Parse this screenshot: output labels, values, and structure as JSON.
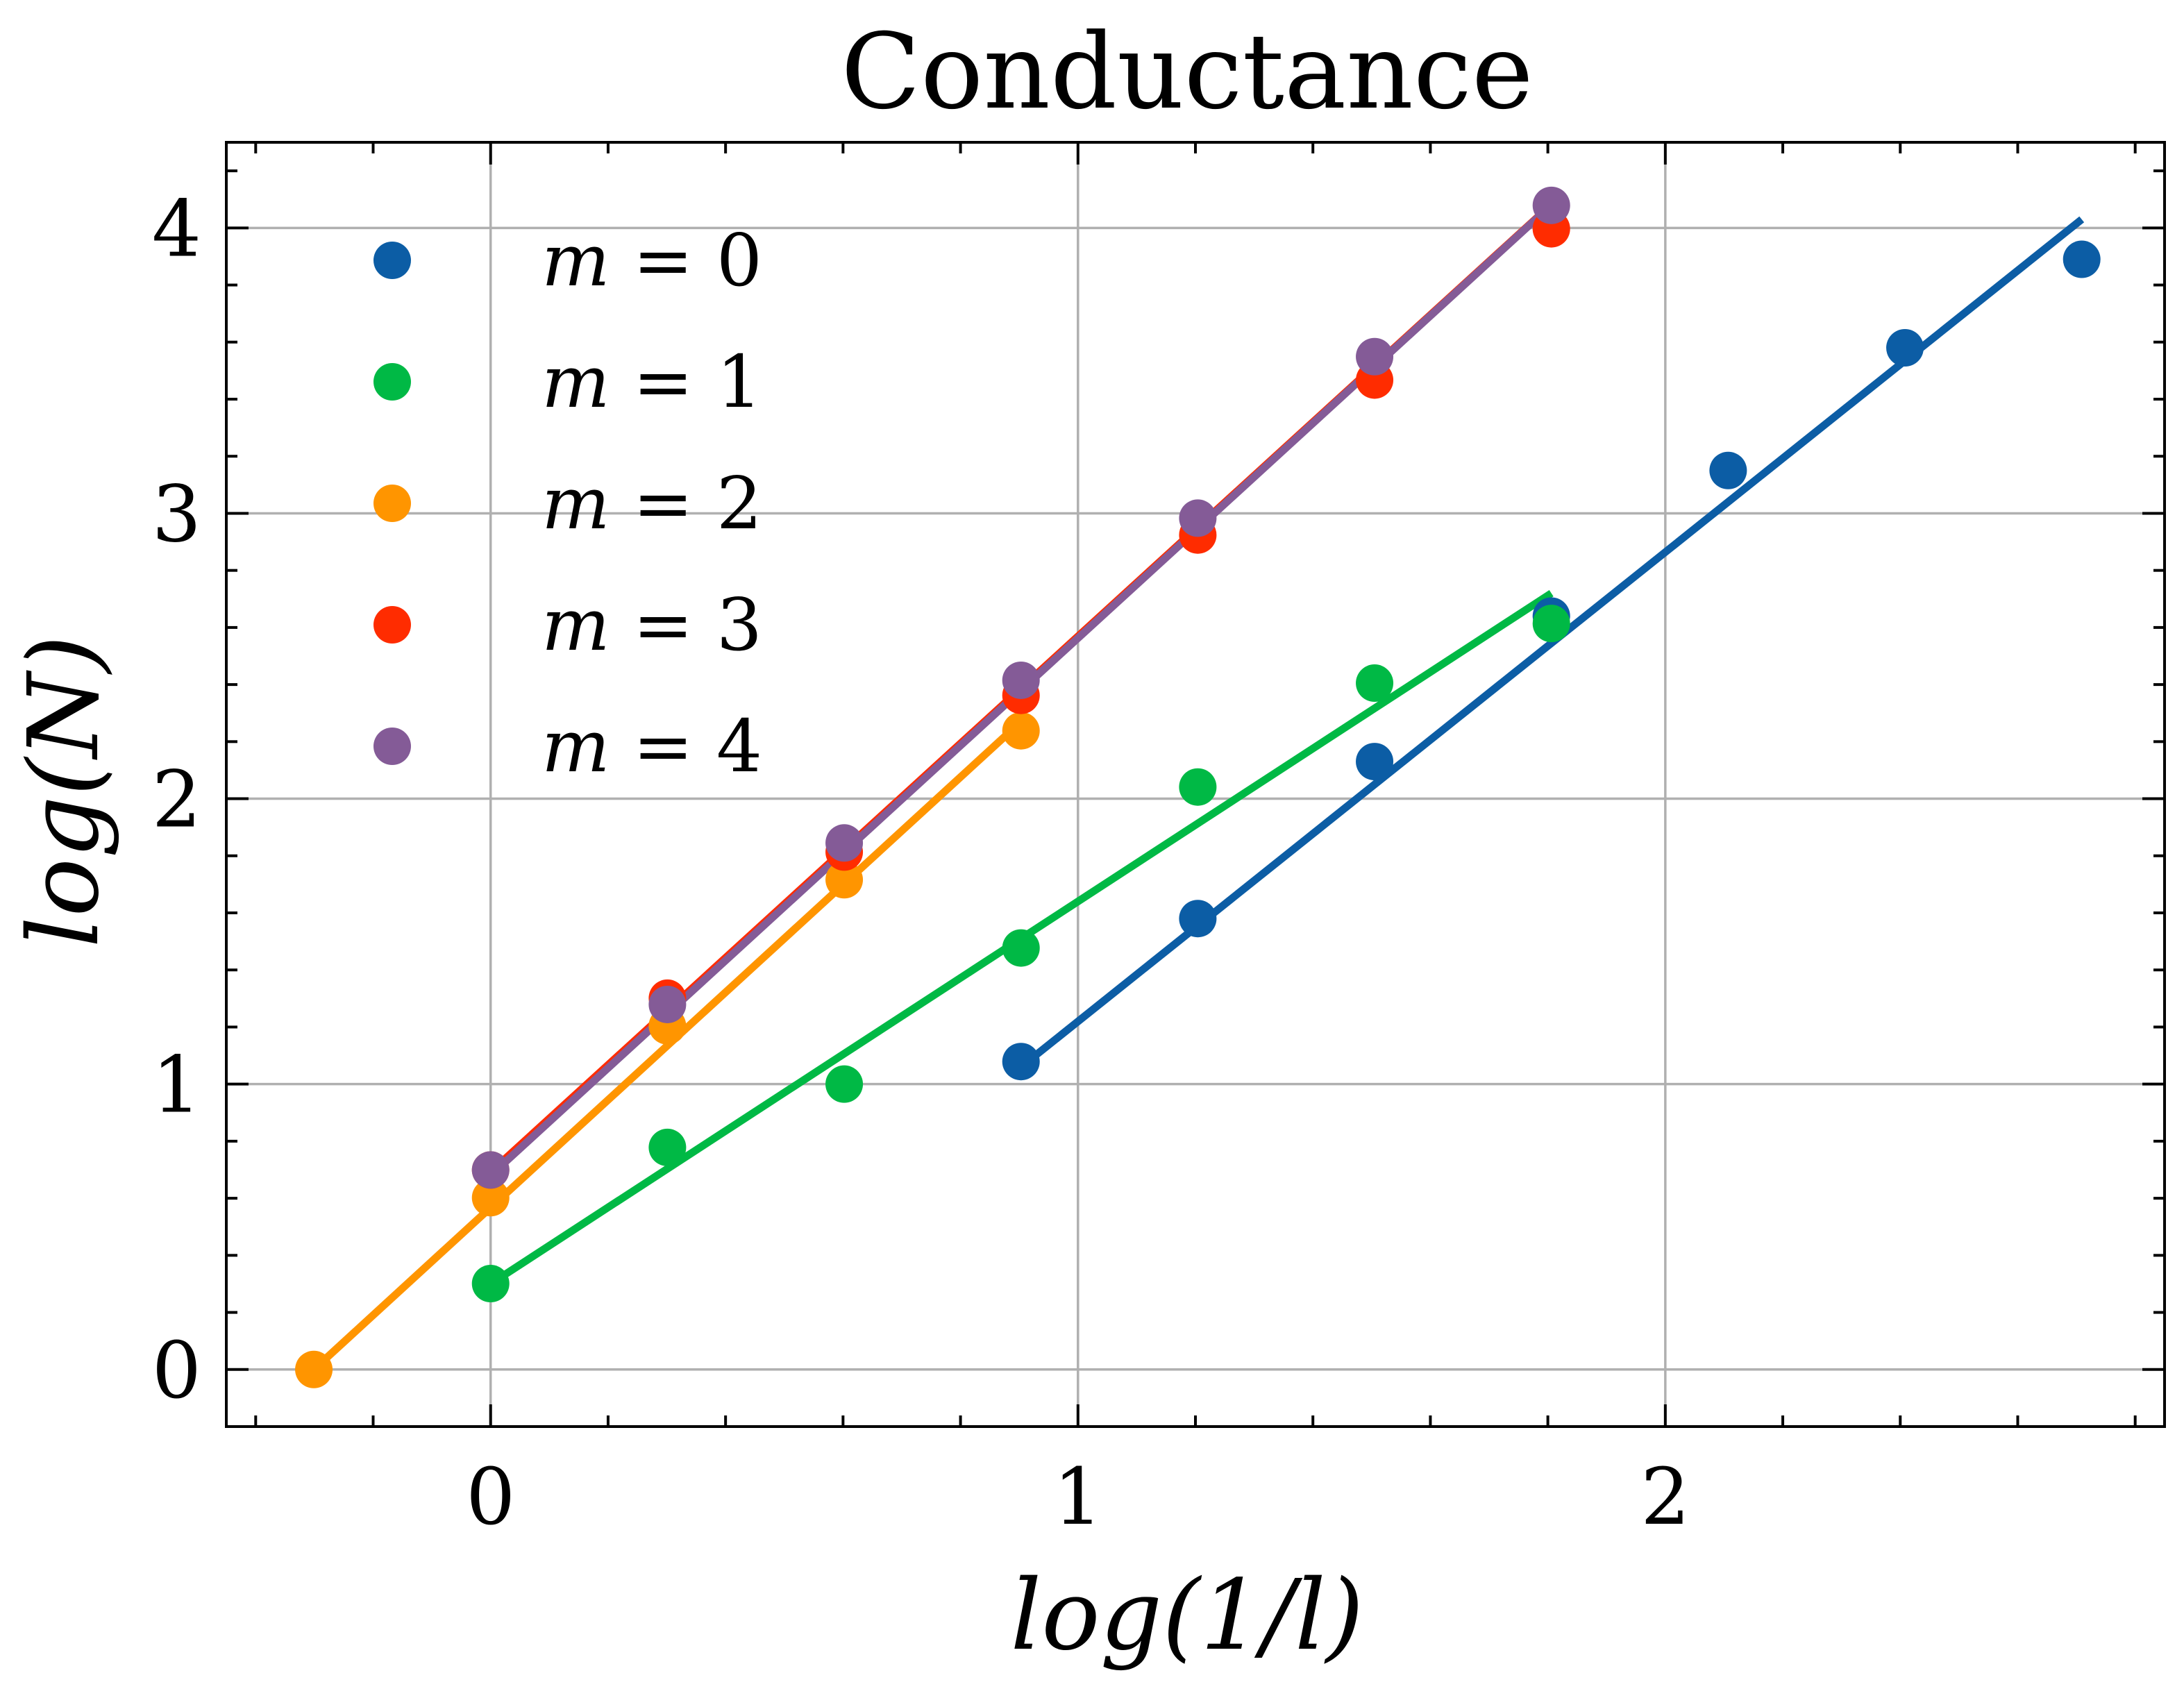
{
  "chart_data": {
    "type": "scatter",
    "title": "Conductance",
    "xlabel": "log(1/l)",
    "ylabel": "log(N)",
    "xlim": [
      -0.45,
      2.85
    ],
    "ylim": [
      -0.2,
      4.3
    ],
    "xticks": [
      0,
      1,
      2
    ],
    "yticks": [
      0,
      1,
      2,
      3,
      4
    ],
    "xtick_labels": [
      "0",
      "1",
      "2"
    ],
    "ytick_labels": [
      "0",
      "1",
      "2",
      "3",
      "4"
    ],
    "x_minor_step": 0.2,
    "y_minor_step": 0.2,
    "grid": true,
    "legend_position": "upper-left",
    "series": [
      {
        "name": "m = 0",
        "legend_var": "m",
        "legend_value": "= 0",
        "color": "#0C5DA5",
        "points": [
          [
            0.903,
            1.079
          ],
          [
            1.204,
            1.58
          ],
          [
            1.505,
            2.13
          ],
          [
            1.806,
            2.64
          ],
          [
            2.107,
            3.15
          ],
          [
            2.408,
            3.58
          ],
          [
            2.709,
            3.89
          ]
        ],
        "fit": [
          [
            0.903,
            1.06
          ],
          [
            2.709,
            4.03
          ]
        ]
      },
      {
        "name": "m = 1",
        "legend_var": "m",
        "legend_value": "= 1",
        "color": "#00B945",
        "points": [
          [
            0.0,
            0.301
          ],
          [
            0.301,
            0.778
          ],
          [
            0.602,
            1.0
          ],
          [
            0.903,
            1.477
          ],
          [
            1.204,
            2.041
          ],
          [
            1.505,
            2.405
          ],
          [
            1.806,
            2.614
          ]
        ],
        "fit": [
          [
            0.0,
            0.3
          ],
          [
            1.806,
            2.72
          ]
        ]
      },
      {
        "name": "m = 2",
        "legend_var": "m",
        "legend_value": "= 2",
        "color": "#FF9500",
        "points": [
          [
            -0.301,
            0.0
          ],
          [
            0.0,
            0.602
          ],
          [
            0.301,
            1.204
          ],
          [
            0.602,
            1.716
          ],
          [
            0.903,
            2.238
          ]
        ],
        "fit": [
          [
            -0.301,
            0.0
          ],
          [
            0.903,
            2.27
          ]
        ]
      },
      {
        "name": "m = 3",
        "legend_var": "m",
        "legend_value": "= 3",
        "color": "#FF2C00",
        "points": [
          [
            0.0,
            0.699
          ],
          [
            0.301,
            1.301
          ],
          [
            0.602,
            1.813
          ],
          [
            0.903,
            2.362
          ],
          [
            1.204,
            2.924
          ],
          [
            1.505,
            3.467
          ],
          [
            1.806,
            3.997
          ]
        ],
        "fit": [
          [
            0.0,
            0.7
          ],
          [
            1.806,
            4.09
          ]
        ]
      },
      {
        "name": "m = 4",
        "legend_var": "m",
        "legend_value": "= 4",
        "color": "#845B97",
        "points": [
          [
            0.0,
            0.699
          ],
          [
            0.301,
            1.279
          ],
          [
            0.602,
            1.845
          ],
          [
            0.903,
            2.415
          ],
          [
            1.204,
            2.983
          ],
          [
            1.505,
            3.549
          ],
          [
            1.806,
            4.079
          ]
        ],
        "fit": [
          [
            0.0,
            0.68
          ],
          [
            1.806,
            4.08
          ]
        ]
      }
    ]
  }
}
